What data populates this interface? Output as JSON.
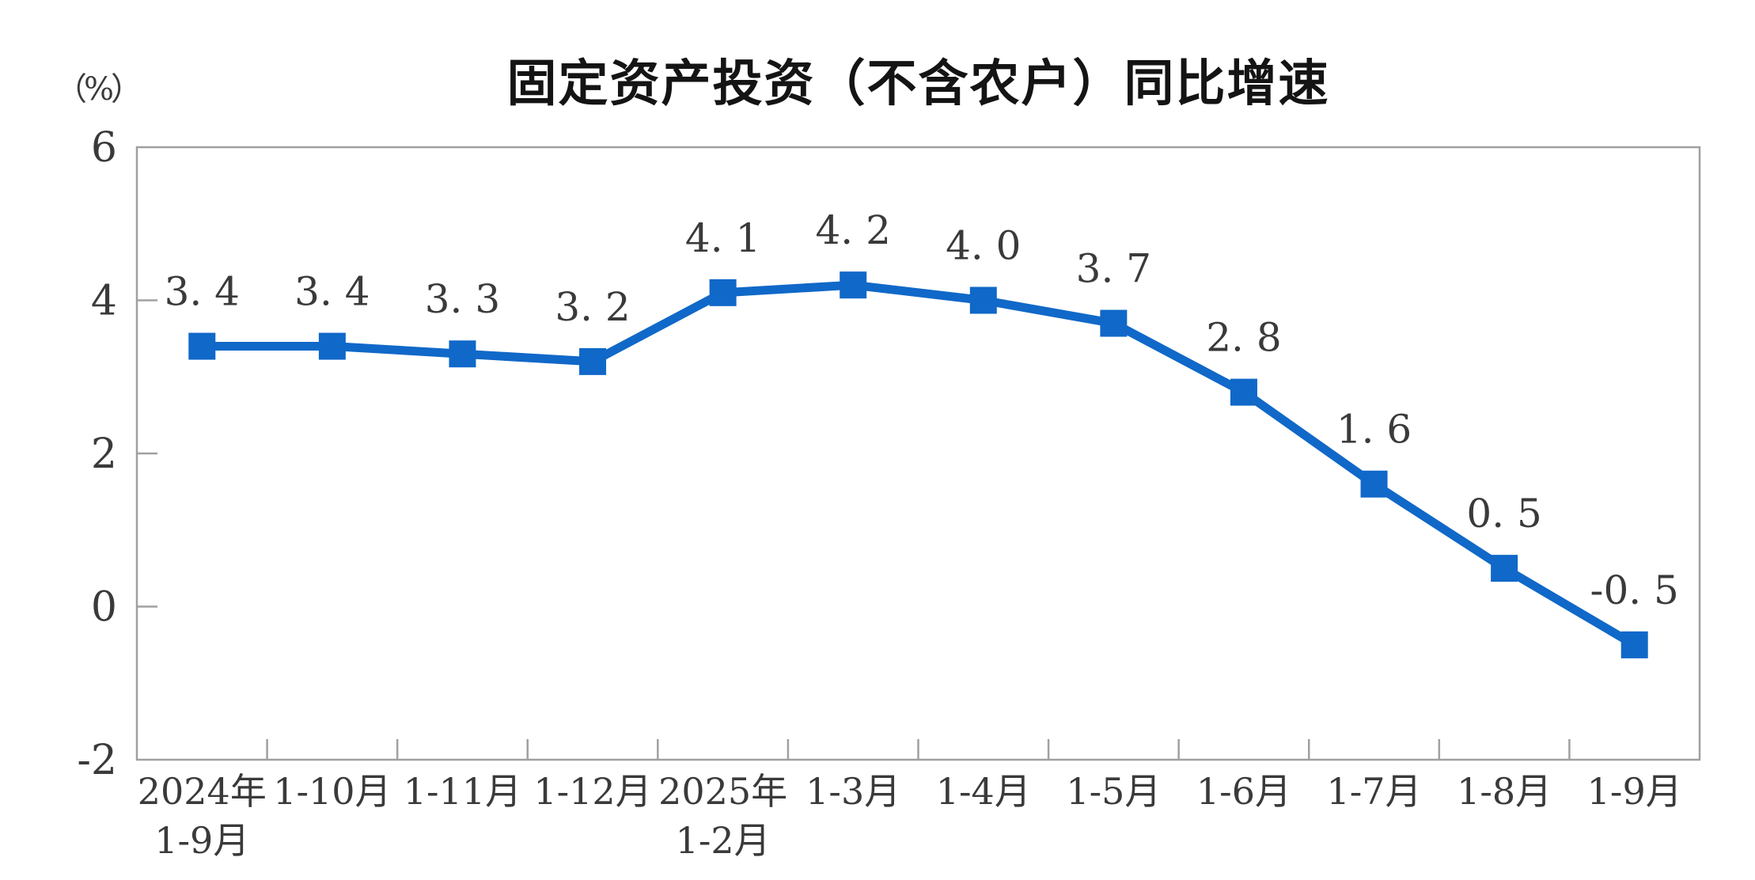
{
  "chart_data": {
    "type": "line",
    "title": "固定资产投资（不含农户）同比增速",
    "unit_label": "（%）",
    "categories": [
      "2024年\n1-9月",
      "1-10月",
      "1-11月",
      "1-12月",
      "2025年\n1-2月",
      "1-3月",
      "1-4月",
      "1-5月",
      "1-6月",
      "1-7月",
      "1-8月",
      "1-9月"
    ],
    "series": [
      {
        "name": "固定资产投资（不含农户）同比增速",
        "values": [
          3.4,
          3.4,
          3.3,
          3.2,
          4.1,
          4.2,
          4.0,
          3.7,
          2.8,
          1.6,
          0.5,
          -0.5
        ]
      }
    ],
    "point_labels": [
      "3. 4",
      "3. 4",
      "3. 3",
      "3. 2",
      "4. 1",
      "4. 2",
      "4. 0",
      "3. 7",
      "2. 8",
      "1. 6",
      "0. 5",
      "-0. 5"
    ],
    "xlabel": "",
    "ylabel": "（%）",
    "ylim": [
      -2,
      6
    ],
    "y_ticks": [
      6,
      4,
      2,
      0,
      -2
    ],
    "y_tick_labels": [
      "6",
      "4",
      "2",
      "0",
      "-2"
    ],
    "grid": false,
    "legend_position": "none",
    "marker_shape": "square",
    "colors": {
      "line": "#1068c8",
      "marker": "#1068c8",
      "axis": "#a0a0a0",
      "tick_text": "#3a3a3a",
      "x_label_text": "#3a3a3a",
      "point_label_text": "#3a3a3a",
      "title_text": "#141414",
      "background": "#ffffff"
    }
  }
}
